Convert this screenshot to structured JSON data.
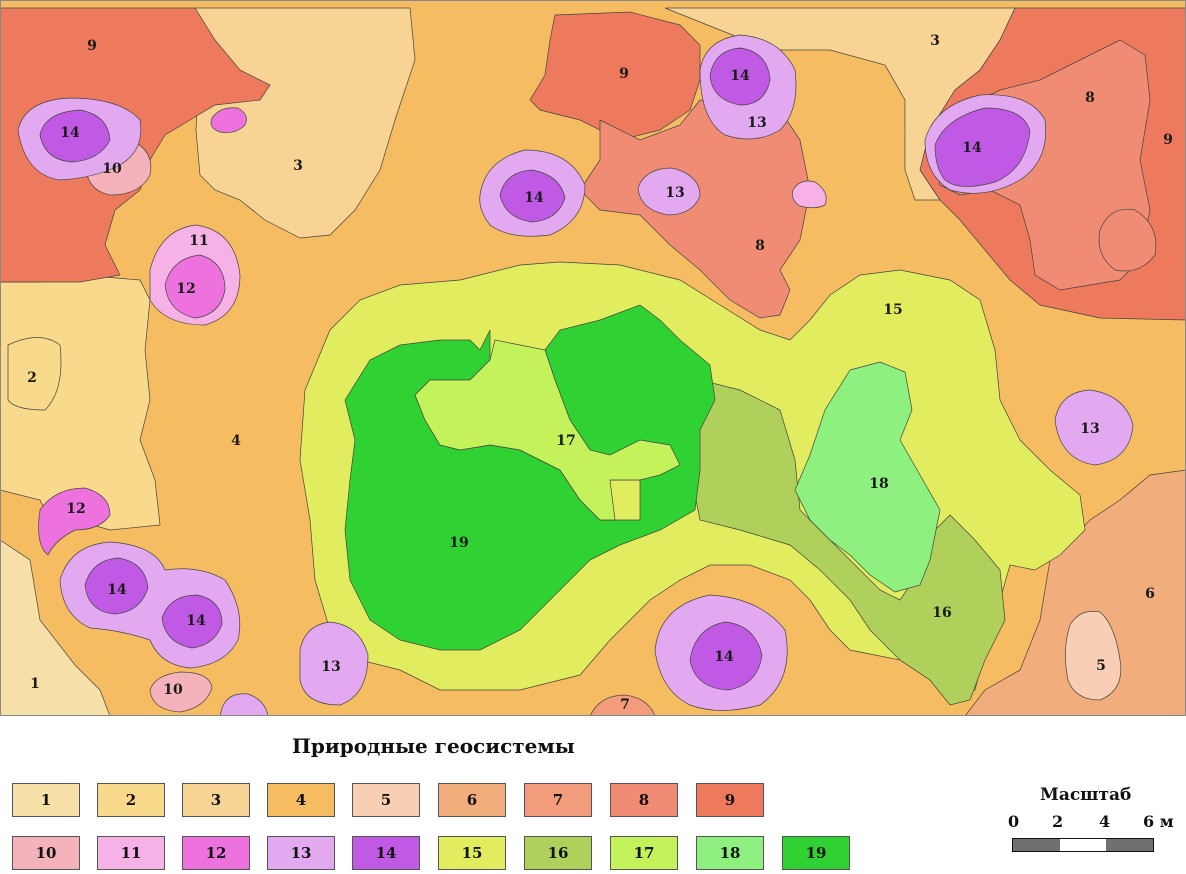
{
  "legend": {
    "title": "Природные геосистемы",
    "items": [
      {
        "label": "1",
        "color": "#f6e0a8"
      },
      {
        "label": "2",
        "color": "#f9d98b"
      },
      {
        "label": "3",
        "color": "#f7d494"
      },
      {
        "label": "4",
        "color": "#f5bc62"
      },
      {
        "label": "5",
        "color": "#f8cfb4"
      },
      {
        "label": "6",
        "color": "#f2ad7c"
      },
      {
        "label": "7",
        "color": "#f39c7b"
      },
      {
        "label": "8",
        "color": "#f08c74"
      },
      {
        "label": "9",
        "color": "#ee7a5e"
      },
      {
        "label": "10",
        "color": "#f4b3bb"
      },
      {
        "label": "11",
        "color": "#f6b2e6"
      },
      {
        "label": "12",
        "color": "#ee72dd"
      },
      {
        "label": "13",
        "color": "#e2a9f0"
      },
      {
        "label": "14",
        "color": "#c05ae4"
      },
      {
        "label": "15",
        "color": "#e1ec5e"
      },
      {
        "label": "16",
        "color": "#afd05a"
      },
      {
        "label": "17",
        "color": "#c3f25a"
      },
      {
        "label": "18",
        "color": "#8ef07f"
      },
      {
        "label": "19",
        "color": "#30d132"
      }
    ]
  },
  "scale": {
    "title": "Масштаб",
    "ticks": [
      "0",
      "2",
      "4",
      "6 м"
    ]
  },
  "map_labels": [
    "9",
    "3",
    "9",
    "3",
    "14",
    "14",
    "13",
    "10",
    "3",
    "14",
    "14",
    "13",
    "8",
    "9",
    "8",
    "11",
    "12",
    "15",
    "2",
    "4",
    "17",
    "13",
    "18",
    "12",
    "19",
    "16",
    "14",
    "6",
    "14",
    "13",
    "14",
    "5",
    "1",
    "10",
    "7"
  ]
}
